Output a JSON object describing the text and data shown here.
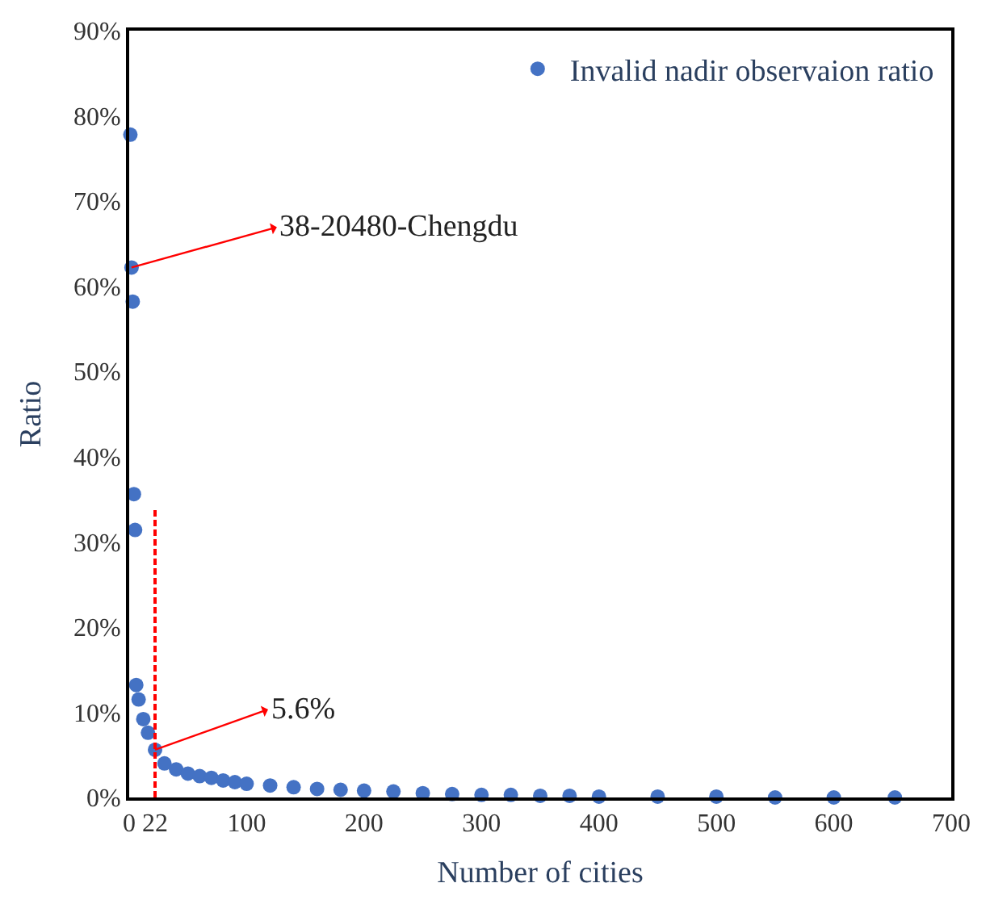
{
  "chart_data": {
    "type": "scatter",
    "xlabel": "Number of cities",
    "ylabel": "Ratio",
    "x": [
      1,
      2,
      3,
      4,
      5,
      6,
      8,
      12,
      16,
      22,
      30,
      40,
      50,
      60,
      70,
      80,
      90,
      100,
      120,
      140,
      160,
      180,
      200,
      225,
      250,
      275,
      300,
      325,
      350,
      375,
      400,
      450,
      500,
      550,
      600,
      652
    ],
    "series": [
      {
        "name": "Invalid nadir observaion ratio",
        "color": "#4472c4",
        "marker": "circle",
        "values": [
          77.8,
          62.2,
          58.2,
          35.6,
          31.4,
          13.2,
          11.5,
          9.2,
          7.6,
          5.6,
          4.0,
          3.3,
          2.8,
          2.5,
          2.3,
          2.0,
          1.8,
          1.6,
          1.4,
          1.2,
          1.0,
          0.9,
          0.8,
          0.7,
          0.5,
          0.4,
          0.3,
          0.3,
          0.2,
          0.2,
          0.1,
          0.1,
          0.1,
          0.0,
          0.0,
          0.0
        ]
      },
      {
        "type": "line",
        "color": "#ff0000",
        "line_style": "dashed",
        "x": [
          22,
          22
        ],
        "values": [
          0,
          34
        ]
      }
    ],
    "annotations": [
      {
        "text": "38-20480-Chengdu",
        "x": 2,
        "y": 62.2
      },
      {
        "text": "5.6%",
        "x": 22,
        "y": 5.6
      }
    ],
    "xlim": [
      0,
      700
    ],
    "xticks": [
      0,
      {
        "value": 22,
        "label": "22"
      },
      100,
      200,
      300,
      400,
      500,
      600,
      700
    ],
    "ylim": [
      0,
      90
    ],
    "yticks": [
      {
        "value": 0,
        "label": "0%"
      },
      {
        "value": 10,
        "label": "10%"
      },
      {
        "value": 20,
        "label": "20%"
      },
      {
        "value": 30,
        "label": "30%"
      },
      {
        "value": 40,
        "label": "40%"
      },
      {
        "value": 50,
        "label": "50%"
      },
      {
        "value": 60,
        "label": "60%"
      },
      {
        "value": 70,
        "label": "70%"
      },
      {
        "value": 80,
        "label": "80%"
      },
      {
        "value": 90,
        "label": "90%"
      }
    ],
    "legend": "top right"
  }
}
